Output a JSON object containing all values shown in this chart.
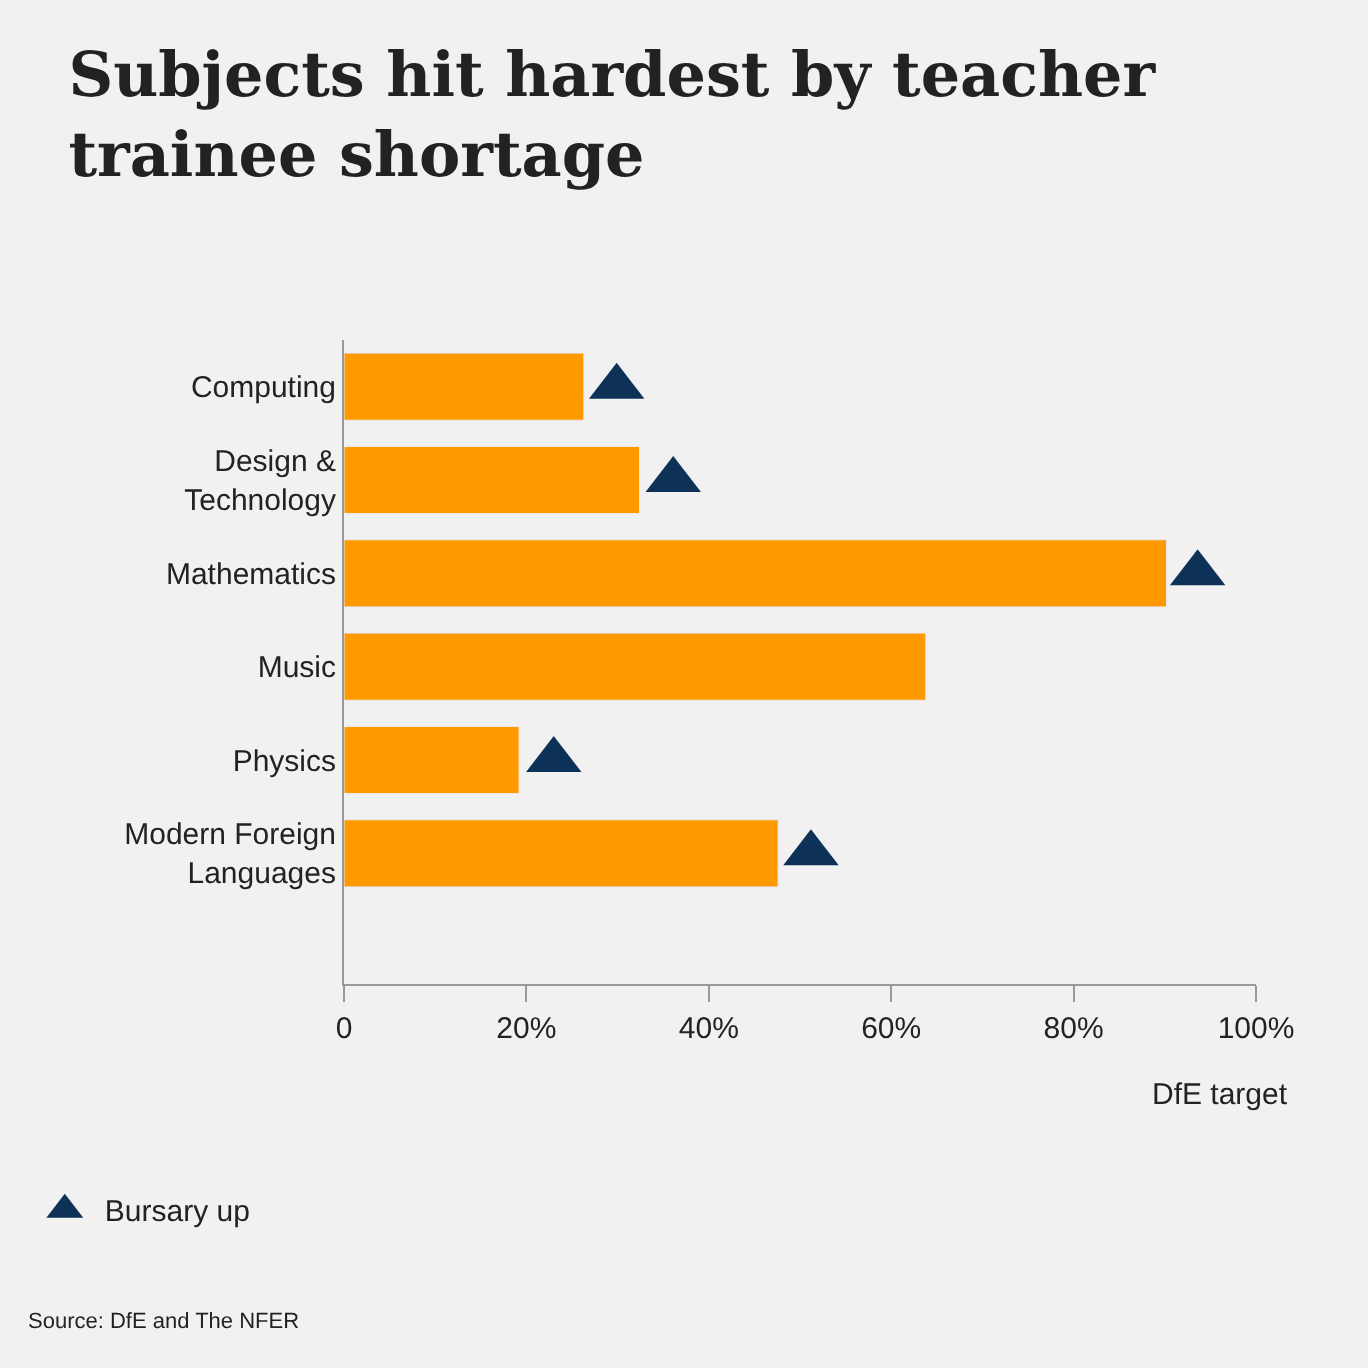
{
  "chart_data": {
    "type": "bar",
    "orientation": "horizontal",
    "title": "Subjects hit hardest by teacher\ntrainee shortage",
    "categories": [
      "Computing",
      "Design &\nTechnology",
      "Mathematics",
      "Music",
      "Physics",
      "Modern Foreign\nLanguages"
    ],
    "series": [
      {
        "color": "#ff9900",
        "values": [
          26.3,
          32.4,
          90.2,
          63.8,
          19.2,
          47.6
        ]
      },
      {
        "name": "Bursary up",
        "type": "scatter",
        "marker": "triangle",
        "color": "#0d3157",
        "values": [
          29.9,
          36.1,
          93.6,
          null,
          23.0,
          51.2
        ]
      }
    ],
    "xlim": [
      0,
      100
    ],
    "xticks": [
      0,
      {
        "value": 20,
        "label": "20%"
      },
      {
        "value": 40,
        "label": "40%"
      },
      {
        "value": 60,
        "label": "60%"
      },
      {
        "value": 80,
        "label": "80%"
      },
      {
        "value": 100,
        "label": "100%"
      }
    ],
    "xlabel": "DfE target",
    "legend": "bottom left",
    "grid": false,
    "annotations": [
      "Source: DfE and The NFER"
    ]
  }
}
